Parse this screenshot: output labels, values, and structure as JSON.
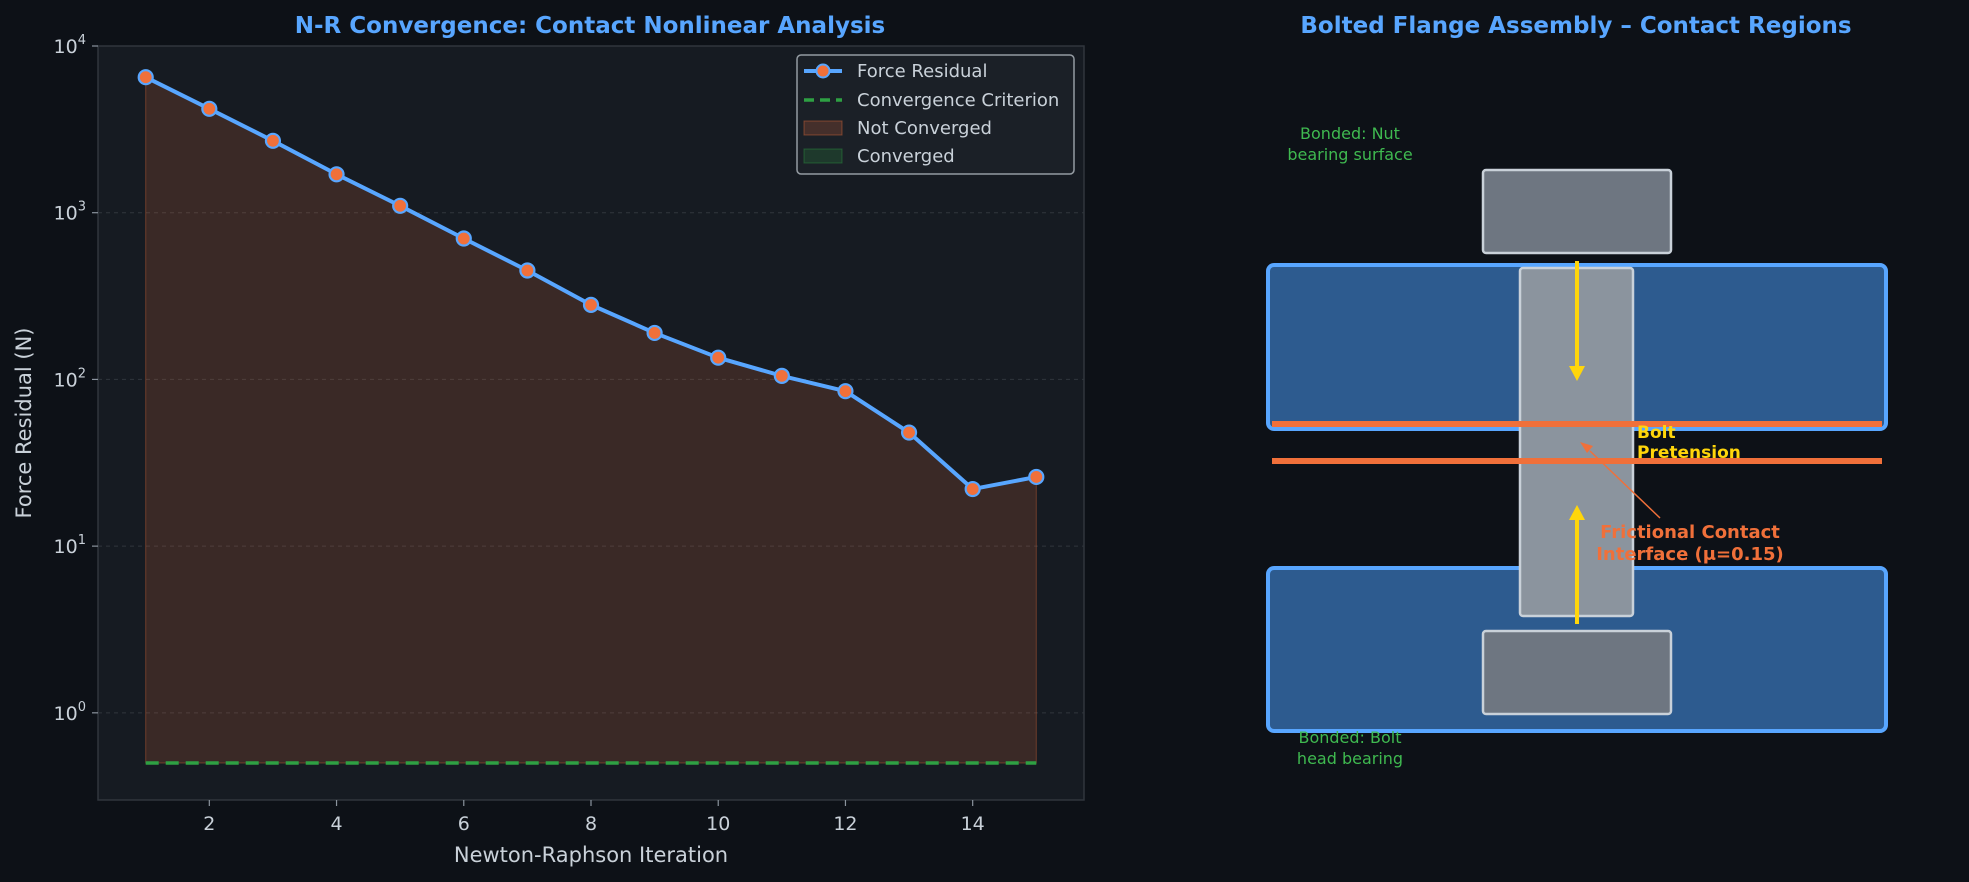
{
  "chart_data": [
    {
      "type": "line",
      "title": "N-R Convergence: Contact Nonlinear Analysis",
      "xlabel": "Newton-Raphson Iteration",
      "ylabel": "Force Residual (N)",
      "y_scale": "log",
      "xlim": [
        0.25,
        15.75
      ],
      "ylim": [
        0.3,
        10000
      ],
      "x_ticks": [
        2,
        4,
        6,
        8,
        10,
        12,
        14
      ],
      "y_ticks": [
        {
          "value": 1,
          "base": "10",
          "exp": "0"
        },
        {
          "value": 10,
          "base": "10",
          "exp": "1"
        },
        {
          "value": 100,
          "base": "10",
          "exp": "2"
        },
        {
          "value": 1000,
          "base": "10",
          "exp": "3"
        },
        {
          "value": 10000,
          "base": "10",
          "exp": "4"
        }
      ],
      "grid": true,
      "legend_position": "top-right",
      "legend": [
        "Force Residual",
        "Convergence Criterion",
        "Not Converged",
        "Converged"
      ],
      "series": [
        {
          "name": "Force Residual",
          "color": "#58a6ff",
          "marker_color": "#f0703a",
          "x": [
            1,
            2,
            3,
            4,
            5,
            6,
            7,
            8,
            9,
            10,
            11,
            12,
            13,
            14,
            15
          ],
          "y": [
            6500,
            4200,
            2700,
            1700,
            1100,
            700,
            450,
            280,
            190,
            135,
            105,
            85,
            48,
            22,
            26
          ]
        }
      ],
      "criterion": {
        "name": "Convergence Criterion",
        "value": 0.5,
        "color": "#2ea043"
      },
      "fills": [
        {
          "name": "Not Converged",
          "color": "#f0703a"
        },
        {
          "name": "Converged",
          "color": "#2ea043"
        }
      ]
    },
    {
      "type": "diagram",
      "title": "Bolted Flange Assembly – Contact Regions",
      "annotations": {
        "nut_bearing": [
          "Bonded: Nut",
          "bearing surface"
        ],
        "bolt_head_bearing": [
          "Bonded: Bolt",
          "head bearing"
        ],
        "bolt_pretension": [
          "Bolt",
          "Pretension"
        ],
        "frictional_contact": [
          "Frictional Contact",
          "Interface (μ=0.15)"
        ]
      },
      "colors": {
        "flange_fill": "#2d5b8f",
        "flange_edge": "#58a6ff",
        "bolt_fill": "#8b949e",
        "nut_fill": "#6e7681",
        "contact_line": "#f0703a",
        "pretension_arrow": "#ffd60a",
        "bonded_text": "#3fb950"
      }
    }
  ]
}
